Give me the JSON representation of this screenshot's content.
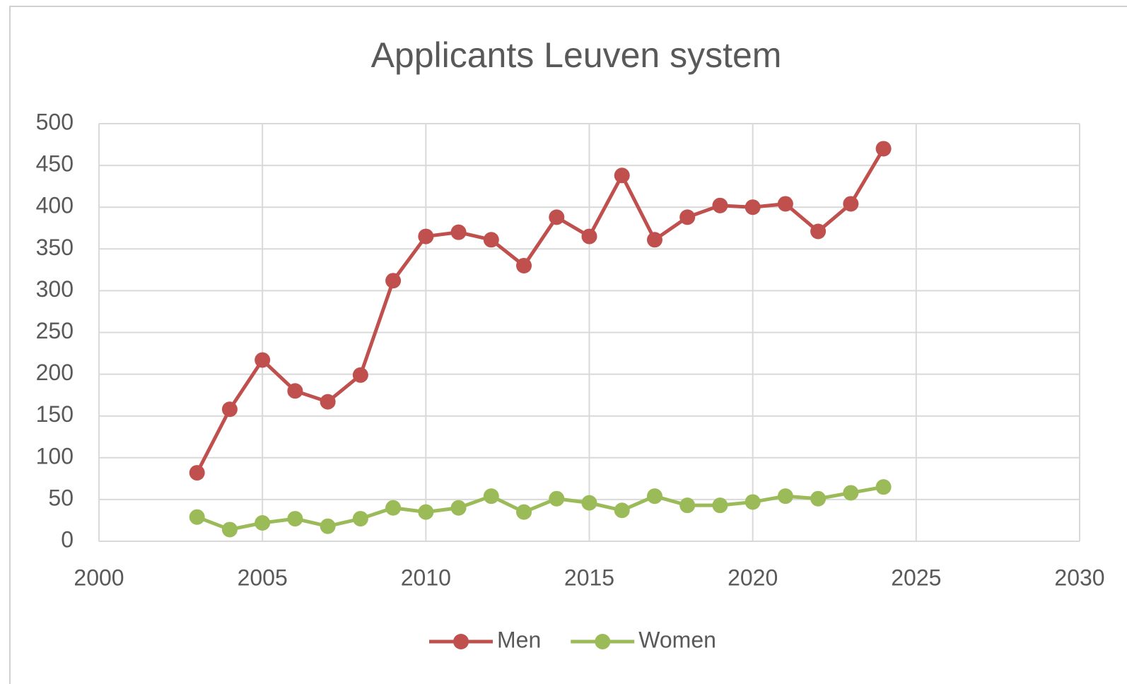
{
  "chart_data": {
    "type": "line",
    "title": "Applicants Leuven system",
    "x": [
      2003,
      2004,
      2005,
      2006,
      2007,
      2008,
      2009,
      2010,
      2011,
      2012,
      2013,
      2014,
      2015,
      2016,
      2017,
      2018,
      2019,
      2020,
      2021,
      2022,
      2023,
      2024
    ],
    "series": [
      {
        "name": "Men",
        "color": "#c0504d",
        "values": [
          82,
          158,
          217,
          180,
          167,
          199,
          312,
          365,
          370,
          361,
          330,
          388,
          365,
          438,
          361,
          388,
          402,
          400,
          404,
          371,
          404,
          470
        ]
      },
      {
        "name": "Women",
        "color": "#9bbb59",
        "values": [
          29,
          14,
          22,
          27,
          18,
          27,
          40,
          35,
          40,
          54,
          35,
          51,
          46,
          37,
          54,
          43,
          43,
          47,
          54,
          51,
          58,
          65
        ]
      }
    ],
    "xlim": [
      2000,
      2030
    ],
    "xticks": [
      2000,
      2005,
      2010,
      2015,
      2020,
      2025,
      2030
    ],
    "ylim": [
      0,
      500
    ],
    "yticks": [
      0,
      50,
      100,
      150,
      200,
      250,
      300,
      350,
      400,
      450,
      500
    ],
    "grid": true,
    "legend": "bottom"
  }
}
